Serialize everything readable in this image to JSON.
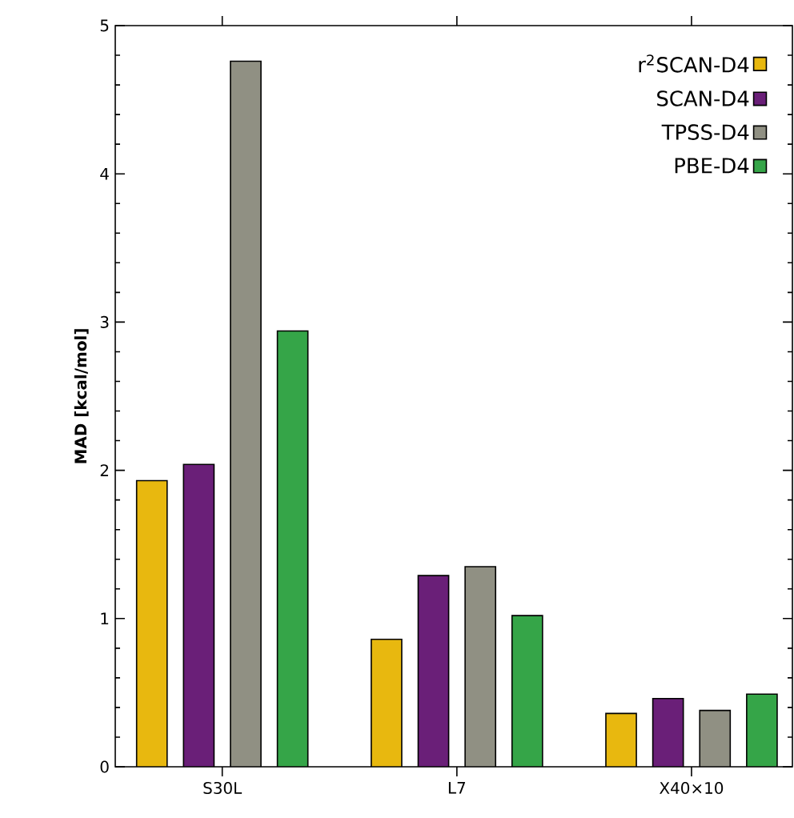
{
  "chart_data": {
    "type": "bar",
    "ylabel": "**MAD [kcal/mol]**",
    "categories": [
      "S30L",
      "L7",
      "X40×10"
    ],
    "series": [
      {
        "name": "r$^{2}$SCAN-D4",
        "color": "#e8b80f",
        "values": [
          1.93,
          0.86,
          0.36
        ]
      },
      {
        "name": "SCAN-D4",
        "color": "#6a1f78",
        "values": [
          2.04,
          1.29,
          0.46
        ]
      },
      {
        "name": "TPSS-D4",
        "color": "#909083",
        "values": [
          4.76,
          1.35,
          0.38
        ]
      },
      {
        "name": "PBE-D4",
        "color": "#35a548",
        "values": [
          2.94,
          1.02,
          0.49
        ]
      }
    ],
    "ylim": [
      0,
      5
    ],
    "yticks": [
      0,
      1,
      2,
      3,
      4,
      5
    ],
    "grid": false,
    "legend": "top right"
  }
}
